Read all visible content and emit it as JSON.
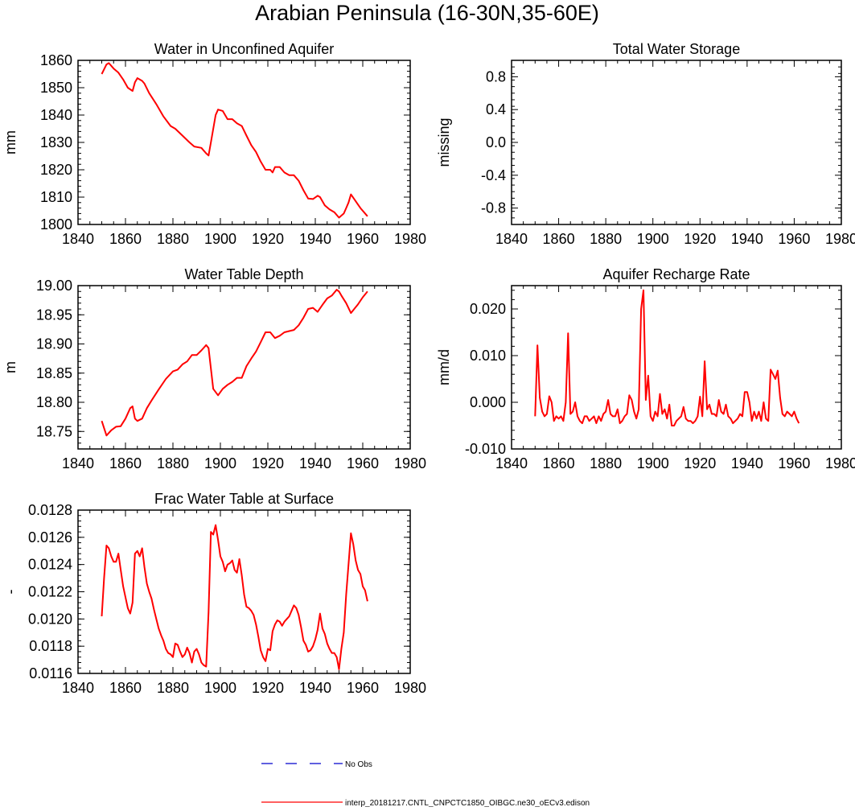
{
  "page_title": "Arabian Peninsula (16-30N,35-60E)",
  "colors": {
    "model_line": "#ff0000",
    "obs_line": "#0000cc",
    "axis": "#000000"
  },
  "legend": {
    "obs_label": "No Obs",
    "model_label": "interp_20181217.CNTL_CNPCTC1850_OIBGC.ne30_oECv3.edison"
  },
  "chart_data": [
    {
      "id": "unconfined",
      "type": "line",
      "title": "Water in Unconfined Aquifer",
      "xlabel": "",
      "ylabel": "mm",
      "xlim": [
        1840,
        1980
      ],
      "ylim": [
        1800,
        1860
      ],
      "xticks": [
        1840,
        1860,
        1880,
        1900,
        1920,
        1940,
        1960,
        1980
      ],
      "yticks": [
        1800,
        1810,
        1820,
        1830,
        1840,
        1850,
        1860
      ],
      "ytick_labels": [
        "1800",
        "1810",
        "1820",
        "1830",
        "1840",
        "1850",
        "1860"
      ],
      "series": [
        {
          "name": "interp_20181217.CNTL_CNPCTC1850_OIBGC.ne30_oECv3.edison",
          "x": [
            1850,
            1852,
            1853,
            1855,
            1857,
            1859,
            1861,
            1863,
            1864,
            1865,
            1867,
            1868,
            1870,
            1873,
            1876,
            1879,
            1881,
            1884,
            1887,
            1889,
            1892,
            1894,
            1895,
            1896,
            1898,
            1899,
            1901,
            1903,
            1905,
            1907,
            1909,
            1911,
            1913,
            1915,
            1917,
            1919,
            1921,
            1922,
            1923,
            1925,
            1927,
            1929,
            1931,
            1933,
            1935,
            1937,
            1939,
            1941,
            1942,
            1944,
            1946,
            1948,
            1950,
            1952,
            1953,
            1954,
            1955,
            1957,
            1959,
            1962
          ],
          "y": [
            1855,
            1858.5,
            1859,
            1857,
            1855.5,
            1853,
            1850,
            1848.8,
            1852,
            1853.5,
            1852.5,
            1851.5,
            1848,
            1844,
            1839.5,
            1836,
            1835,
            1832.5,
            1830,
            1828.5,
            1828,
            1826,
            1825.2,
            1830,
            1840,
            1842,
            1841.5,
            1838.5,
            1838.5,
            1837,
            1836,
            1832.5,
            1829,
            1826.5,
            1823,
            1820,
            1820,
            1819,
            1821,
            1821,
            1819,
            1818,
            1818,
            1816,
            1812.5,
            1809.5,
            1809.3,
            1810.5,
            1810,
            1807,
            1805.5,
            1804.5,
            1802.5,
            1804,
            1806,
            1808,
            1811,
            1808.5,
            1806,
            1803
          ]
        }
      ]
    },
    {
      "id": "tws",
      "type": "line",
      "title": "Total Water Storage",
      "xlabel": "",
      "ylabel": "missing",
      "xlim": [
        1840,
        1980
      ],
      "ylim": [
        -1,
        1
      ],
      "xticks": [
        1840,
        1860,
        1880,
        1900,
        1920,
        1940,
        1960,
        1980
      ],
      "yticks": [
        -0.8,
        -0.4,
        0.0,
        0.4,
        0.8
      ],
      "ytick_labels": [
        "-0.8",
        "-0.4",
        "0.0",
        "0.4",
        "0.8"
      ],
      "series": []
    },
    {
      "id": "wtd",
      "type": "line",
      "title": "Water Table Depth",
      "xlabel": "",
      "ylabel": "m",
      "xlim": [
        1840,
        1980
      ],
      "ylim": [
        18.72,
        19.0
      ],
      "xticks": [
        1840,
        1860,
        1880,
        1900,
        1920,
        1940,
        1960,
        1980
      ],
      "yticks": [
        18.75,
        18.8,
        18.85,
        18.9,
        18.95,
        19.0
      ],
      "ytick_labels": [
        "18.75",
        "18.80",
        "18.85",
        "18.90",
        "18.95",
        "19.00"
      ],
      "series": [
        {
          "name": "interp_20181217.CNTL_CNPCTC1850_OIBGC.ne30_oECv3.edison",
          "x": [
            1850,
            1852,
            1854,
            1856,
            1858,
            1860,
            1862,
            1863,
            1864,
            1865,
            1867,
            1869,
            1871,
            1874,
            1877,
            1880,
            1882,
            1884,
            1886,
            1888,
            1890,
            1892,
            1894,
            1895,
            1897,
            1899,
            1901,
            1903,
            1905,
            1907,
            1909,
            1911,
            1913,
            1915,
            1917,
            1919,
            1921,
            1923,
            1925,
            1927,
            1929,
            1931,
            1933,
            1935,
            1937,
            1939,
            1941,
            1943,
            1945,
            1947,
            1949,
            1950,
            1951,
            1953,
            1955,
            1956,
            1958,
            1960,
            1962
          ],
          "y": [
            18.768,
            18.743,
            18.752,
            18.758,
            18.759,
            18.772,
            18.79,
            18.793,
            18.772,
            18.768,
            18.772,
            18.79,
            18.803,
            18.822,
            18.84,
            18.853,
            18.856,
            18.865,
            18.87,
            18.881,
            18.881,
            18.889,
            18.898,
            18.893,
            18.823,
            18.812,
            18.823,
            18.83,
            18.835,
            18.842,
            18.842,
            18.862,
            18.875,
            18.887,
            18.903,
            18.92,
            18.92,
            18.91,
            18.914,
            18.92,
            18.922,
            18.924,
            18.932,
            18.945,
            18.96,
            18.962,
            18.955,
            18.967,
            18.978,
            18.983,
            18.993,
            18.99,
            18.983,
            18.97,
            18.953,
            18.958,
            18.968,
            18.98,
            18.99
          ]
        }
      ]
    },
    {
      "id": "recharge",
      "type": "line",
      "title": "Aquifer Recharge Rate",
      "xlabel": "",
      "ylabel": "mm/d",
      "xlim": [
        1840,
        1980
      ],
      "ylim": [
        -0.01,
        0.025
      ],
      "xticks": [
        1840,
        1860,
        1880,
        1900,
        1920,
        1940,
        1960,
        1980
      ],
      "yticks": [
        -0.01,
        0.0,
        0.01,
        0.02
      ],
      "ytick_labels": [
        "-0.010",
        "0.000",
        "0.010",
        "0.020"
      ],
      "series": [
        {
          "name": "interp_20181217.CNTL_CNPCTC1850_OIBGC.ne30_oECv3.edison",
          "x": [
            1850,
            1851,
            1852,
            1853,
            1854,
            1855,
            1856,
            1857,
            1858,
            1859,
            1860,
            1861,
            1862,
            1863,
            1864,
            1865,
            1866,
            1867,
            1868,
            1869,
            1870,
            1871,
            1872,
            1873,
            1874,
            1875,
            1876,
            1877,
            1878,
            1879,
            1880,
            1881,
            1882,
            1883,
            1884,
            1885,
            1886,
            1887,
            1888,
            1889,
            1890,
            1891,
            1892,
            1893,
            1894,
            1895,
            1896,
            1897,
            1898,
            1899,
            1900,
            1901,
            1902,
            1903,
            1904,
            1905,
            1906,
            1907,
            1908,
            1909,
            1910,
            1911,
            1912,
            1913,
            1914,
            1915,
            1916,
            1917,
            1918,
            1919,
            1920,
            1921,
            1922,
            1923,
            1924,
            1925,
            1926,
            1927,
            1928,
            1929,
            1930,
            1931,
            1932,
            1933,
            1934,
            1935,
            1936,
            1937,
            1938,
            1939,
            1940,
            1941,
            1942,
            1943,
            1944,
            1945,
            1946,
            1947,
            1948,
            1949,
            1950,
            1951,
            1952,
            1953,
            1954,
            1955,
            1956,
            1957,
            1958,
            1959,
            1960,
            1961,
            1962
          ],
          "y": [
            -0.003,
            0.0122,
            0.001,
            -0.002,
            -0.003,
            -0.0025,
            0.0013,
            0.0,
            -0.004,
            -0.003,
            -0.0035,
            -0.003,
            -0.004,
            0.0,
            0.0148,
            -0.0025,
            -0.002,
            0.0,
            -0.003,
            -0.004,
            -0.0045,
            -0.003,
            -0.003,
            -0.004,
            -0.0035,
            -0.003,
            -0.0045,
            -0.003,
            -0.004,
            -0.0025,
            -0.002,
            0.0005,
            -0.0025,
            -0.003,
            -0.003,
            -0.0015,
            -0.0045,
            -0.004,
            -0.003,
            -0.0025,
            0.0015,
            0.0005,
            -0.002,
            -0.0035,
            -0.0015,
            0.02,
            0.024,
            0.0005,
            0.0057,
            -0.003,
            -0.004,
            -0.002,
            -0.003,
            0.0018,
            -0.0025,
            -0.0015,
            -0.0035,
            -0.0005,
            -0.005,
            -0.005,
            -0.004,
            -0.0035,
            -0.003,
            -0.001,
            -0.0035,
            -0.004,
            -0.004,
            -0.0045,
            -0.004,
            -0.003,
            0.0012,
            -0.003,
            0.0088,
            -0.0015,
            -0.0005,
            -0.0025,
            -0.0025,
            -0.003,
            0.0005,
            -0.002,
            -0.0025,
            -0.0005,
            -0.003,
            -0.0035,
            -0.0045,
            -0.004,
            -0.0035,
            -0.0025,
            -0.003,
            0.0022,
            0.0022,
            0.0,
            -0.004,
            -0.002,
            -0.0035,
            -0.002,
            -0.004,
            0.0,
            -0.0035,
            -0.004,
            0.007,
            0.006,
            0.005,
            0.0068,
            0.001,
            -0.0025,
            -0.003,
            -0.002,
            -0.0025,
            -0.003,
            -0.002,
            -0.0035,
            -0.0045
          ]
        }
      ]
    },
    {
      "id": "frac",
      "type": "line",
      "title": "Frac Water Table at Surface",
      "xlabel": "",
      "ylabel": "-",
      "xlim": [
        1840,
        1980
      ],
      "ylim": [
        0.0116,
        0.0128
      ],
      "xticks": [
        1840,
        1860,
        1880,
        1900,
        1920,
        1940,
        1960,
        1980
      ],
      "yticks": [
        0.0116,
        0.0118,
        0.012,
        0.0122,
        0.0124,
        0.0126,
        0.0128
      ],
      "ytick_labels": [
        "0.0116",
        "0.0118",
        "0.0120",
        "0.0122",
        "0.0124",
        "0.0126",
        "0.0128"
      ],
      "series": [
        {
          "name": "interp_20181217.CNTL_CNPCTC1850_OIBGC.ne30_oECv3.edison",
          "x": [
            1850,
            1851,
            1852,
            1853,
            1854,
            1855,
            1856,
            1857,
            1858,
            1859,
            1860,
            1861,
            1862,
            1863,
            1864,
            1865,
            1866,
            1867,
            1868,
            1869,
            1870,
            1871,
            1872,
            1873,
            1874,
            1875,
            1876,
            1877,
            1878,
            1879,
            1880,
            1881,
            1882,
            1883,
            1884,
            1885,
            1886,
            1887,
            1888,
            1889,
            1890,
            1891,
            1892,
            1893,
            1894,
            1895,
            1896,
            1897,
            1898,
            1899,
            1900,
            1901,
            1902,
            1903,
            1904,
            1905,
            1906,
            1907,
            1908,
            1909,
            1910,
            1911,
            1912,
            1913,
            1914,
            1915,
            1916,
            1917,
            1918,
            1919,
            1920,
            1921,
            1922,
            1923,
            1924,
            1925,
            1926,
            1927,
            1928,
            1929,
            1930,
            1931,
            1932,
            1933,
            1934,
            1935,
            1936,
            1937,
            1938,
            1939,
            1940,
            1941,
            1942,
            1943,
            1944,
            1945,
            1946,
            1947,
            1948,
            1949,
            1950,
            1951,
            1952,
            1953,
            1954,
            1955,
            1956,
            1957,
            1958,
            1959,
            1960,
            1961,
            1962
          ],
          "y": [
            0.01202,
            0.0123,
            0.01254,
            0.01252,
            0.01246,
            0.01242,
            0.01242,
            0.01248,
            0.01236,
            0.01224,
            0.01216,
            0.01208,
            0.01204,
            0.01212,
            0.01248,
            0.0125,
            0.01246,
            0.01252,
            0.01238,
            0.01226,
            0.0122,
            0.01215,
            0.01207,
            0.012,
            0.01193,
            0.01188,
            0.01184,
            0.01178,
            0.01175,
            0.01174,
            0.01172,
            0.01182,
            0.01181,
            0.01176,
            0.01172,
            0.01174,
            0.01179,
            0.01175,
            0.01168,
            0.01176,
            0.01178,
            0.01174,
            0.01168,
            0.01166,
            0.01165,
            0.01205,
            0.01264,
            0.01262,
            0.01269,
            0.01258,
            0.01246,
            0.01242,
            0.01235,
            0.0124,
            0.01241,
            0.01243,
            0.01236,
            0.01234,
            0.01244,
            0.01232,
            0.01218,
            0.01209,
            0.01208,
            0.01206,
            0.01203,
            0.01196,
            0.01187,
            0.01177,
            0.01172,
            0.01169,
            0.01178,
            0.01177,
            0.01191,
            0.01196,
            0.01199,
            0.01198,
            0.01195,
            0.01198,
            0.012,
            0.01202,
            0.01206,
            0.0121,
            0.01208,
            0.01203,
            0.01194,
            0.01184,
            0.01181,
            0.01176,
            0.01177,
            0.0118,
            0.01185,
            0.01192,
            0.01204,
            0.01193,
            0.01189,
            0.01182,
            0.01178,
            0.01175,
            0.01175,
            0.01172,
            0.01163,
            0.01178,
            0.0119,
            0.01218,
            0.0124,
            0.01263,
            0.01255,
            0.01243,
            0.01236,
            0.01233,
            0.01224,
            0.01221,
            0.01213
          ]
        }
      ]
    }
  ]
}
